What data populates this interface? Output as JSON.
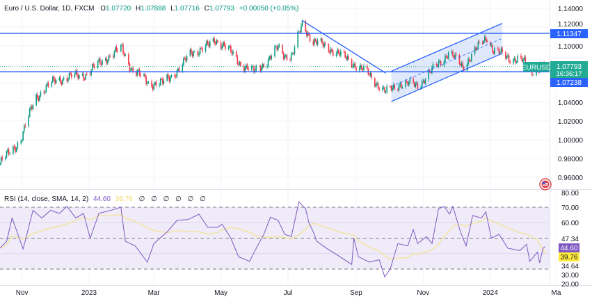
{
  "header": {
    "symbol_title": "Euro / U.S. Dollar, 1D, FXCM",
    "open_label": "O",
    "open": "1.07720",
    "high_label": "H",
    "high": "1.07888",
    "low_label": "L",
    "low": "1.07716",
    "close_label": "C",
    "close": "1.07793",
    "change": "+0.00050 (+0.05%)"
  },
  "rsi_header": {
    "title": "RSI (14, close, SMA, 14, 2)",
    "rsi_value": "44.60",
    "sma_value": "39.76",
    "empty_values": [
      "∅",
      "∅",
      "∅",
      "∅",
      "∅",
      "∅"
    ]
  },
  "price_axis": {
    "ticks": [
      "1.14000",
      "1.12000",
      "1.10000",
      "1.04000",
      "1.02000",
      "1.00000",
      "0.98000",
      "0.96000"
    ],
    "badges": {
      "resistance": "1.11347",
      "support": "1.07238",
      "symbol": "EURUSD",
      "last_price": "1.07793",
      "countdown": "16:36:17"
    }
  },
  "rsi_axis": {
    "ticks": [
      "80.00",
      "70.00",
      "60.00",
      "30.00",
      "20.00"
    ],
    "levels": [
      "47.34",
      "34.64"
    ],
    "rsi_badge": "44.60",
    "sma_badge": "39.76"
  },
  "time_axis": [
    "Nov",
    "2023",
    "Mar",
    "May",
    "Jul",
    "Sep",
    "Nov",
    "2024",
    "Ma"
  ],
  "colors": {
    "up": "#089981",
    "down": "#f23645",
    "drawing": "#2962ff",
    "channel_fill": "#dbe4fb",
    "rsi_line": "#7e57c2",
    "rsi_sma": "#f3e4a0",
    "rsi_band": "#efebf8",
    "badge_green": "#22ab94",
    "badge_blue": "#2962ff"
  },
  "chart_data": [
    {
      "type": "candlestick",
      "title": "Euro / U.S. Dollar, 1D, FXCM",
      "ylim": [
        0.95,
        1.145
      ],
      "x_range": [
        "2022-10-12",
        "2024-03-05"
      ],
      "close_path": [
        [
          "2022-10-12",
          0.975
        ],
        [
          "2022-10-31",
          1.0
        ],
        [
          "2022-11-13",
          1.045
        ],
        [
          "2022-12-02",
          1.064
        ],
        [
          "2022-12-30",
          1.07
        ],
        [
          "2023-01-15",
          1.086
        ],
        [
          "2023-01-31",
          1.097
        ],
        [
          "2023-02-09",
          1.075
        ],
        [
          "2023-02-25",
          1.06
        ],
        [
          "2023-03-09",
          1.06
        ],
        [
          "2023-03-26",
          1.078
        ],
        [
          "2023-04-04",
          1.093
        ],
        [
          "2023-04-20",
          1.1
        ],
        [
          "2023-04-26",
          1.106
        ],
        [
          "2023-05-03",
          1.102
        ],
        [
          "2023-05-18",
          1.082
        ],
        [
          "2023-05-31",
          1.072
        ],
        [
          "2023-06-13",
          1.085
        ],
        [
          "2023-06-22",
          1.098
        ],
        [
          "2023-06-28",
          1.09
        ],
        [
          "2023-07-05",
          1.09
        ],
        [
          "2023-07-14",
          1.123
        ],
        [
          "2023-07-24",
          1.105
        ],
        [
          "2023-08-12",
          1.095
        ],
        [
          "2023-08-31",
          1.08
        ],
        [
          "2023-09-12",
          1.07
        ],
        [
          "2023-09-28",
          1.05
        ],
        [
          "2023-10-11",
          1.06
        ],
        [
          "2023-10-27",
          1.058
        ],
        [
          "2023-11-08",
          1.072
        ],
        [
          "2023-11-24",
          1.093
        ],
        [
          "2023-12-07",
          1.078
        ],
        [
          "2023-12-20",
          1.097
        ],
        [
          "2023-12-29",
          1.11
        ],
        [
          "2024-01-04",
          1.095
        ],
        [
          "2024-01-17",
          1.088
        ],
        [
          "2024-01-30",
          1.084
        ],
        [
          "2024-02-08",
          1.074
        ],
        [
          "2024-02-20",
          1.07793
        ]
      ],
      "last": {
        "open": 1.0772,
        "high": 1.07888,
        "low": 1.07716,
        "close": 1.07793
      },
      "horizontal_lines": [
        1.11347,
        1.07238
      ],
      "trend_line": [
        [
          "2023-07-14",
          1.127
        ],
        [
          "2023-09-28",
          1.071
        ]
      ],
      "parallel_channel": {
        "lower": [
          [
            "2023-10-03",
            1.0407
          ],
          [
            "2024-01-12",
            1.092
          ]
        ],
        "upper": [
          [
            "2023-10-03",
            1.073
          ],
          [
            "2024-01-12",
            1.124
          ]
        ]
      }
    },
    {
      "type": "line",
      "title": "RSI (14, close, SMA, 14, 2)",
      "ylim": [
        18,
        82
      ],
      "bands": [
        70,
        50,
        30
      ],
      "series": [
        {
          "name": "RSI",
          "values": [
            [
              "2022-10-12",
              43.5
            ],
            [
              "2022-10-18",
              48
            ],
            [
              "2022-10-23",
              63
            ],
            [
              "2022-11-02",
              43
            ],
            [
              "2022-11-11",
              68
            ],
            [
              "2022-11-19",
              63
            ],
            [
              "2022-11-27",
              68
            ],
            [
              "2022-12-05",
              66
            ],
            [
              "2022-12-12",
              70.5
            ],
            [
              "2022-12-20",
              63
            ],
            [
              "2022-12-27",
              66
            ],
            [
              "2023-01-02",
              50
            ],
            [
              "2023-01-10",
              66
            ],
            [
              "2023-01-21",
              68
            ],
            [
              "2023-01-30",
              70
            ],
            [
              "2023-02-03",
              48
            ],
            [
              "2023-02-12",
              45
            ],
            [
              "2023-02-23",
              34.5
            ],
            [
              "2023-03-01",
              46.5
            ],
            [
              "2023-03-13",
              54
            ],
            [
              "2023-03-22",
              61.5
            ],
            [
              "2023-04-01",
              62
            ],
            [
              "2023-04-11",
              65.5
            ],
            [
              "2023-04-19",
              57
            ],
            [
              "2023-04-28",
              57
            ],
            [
              "2023-05-02",
              59
            ],
            [
              "2023-05-10",
              50
            ],
            [
              "2023-05-17",
              38
            ],
            [
              "2023-05-27",
              35
            ],
            [
              "2023-06-01",
              42
            ],
            [
              "2023-06-09",
              52.5
            ],
            [
              "2023-06-15",
              63.5
            ],
            [
              "2023-06-22",
              61.5
            ],
            [
              "2023-06-28",
              52.5
            ],
            [
              "2023-07-04",
              51
            ],
            [
              "2023-07-11",
              73.5
            ],
            [
              "2023-07-17",
              69
            ],
            [
              "2023-07-20",
              60
            ],
            [
              "2023-07-25",
              52.5
            ],
            [
              "2023-07-27",
              48
            ],
            [
              "2023-08-05",
              43.5
            ],
            [
              "2023-08-15",
              39
            ],
            [
              "2023-08-28",
              33
            ],
            [
              "2023-08-30",
              50
            ],
            [
              "2023-09-03",
              38
            ],
            [
              "2023-09-13",
              34.5
            ],
            [
              "2023-09-22",
              36
            ],
            [
              "2023-09-27",
              25
            ],
            [
              "2023-10-02",
              30
            ],
            [
              "2023-10-09",
              46.5
            ],
            [
              "2023-10-18",
              45
            ],
            [
              "2023-10-23",
              55.5
            ],
            [
              "2023-10-27",
              46.5
            ],
            [
              "2023-11-04",
              51
            ],
            [
              "2023-11-09",
              46.5
            ],
            [
              "2023-11-15",
              69
            ],
            [
              "2023-11-20",
              70.5
            ],
            [
              "2023-11-25",
              65.5
            ],
            [
              "2023-11-28",
              70.5
            ],
            [
              "2023-12-05",
              54
            ],
            [
              "2023-12-10",
              45
            ],
            [
              "2023-12-16",
              64.6
            ],
            [
              "2023-12-24",
              63
            ],
            [
              "2023-12-28",
              67
            ],
            [
              "2024-01-02",
              50
            ],
            [
              "2024-01-09",
              52.5
            ],
            [
              "2024-01-17",
              43.5
            ],
            [
              "2024-01-28",
              42
            ],
            [
              "2024-02-03",
              46
            ],
            [
              "2024-02-06",
              35
            ],
            [
              "2024-02-13",
              41
            ],
            [
              "2024-02-15",
              34
            ],
            [
              "2024-02-18",
              43.5
            ],
            [
              "2024-02-20",
              44.6
            ]
          ]
        },
        {
          "name": "RSI-based MA",
          "last": 39.76
        }
      ]
    }
  ]
}
